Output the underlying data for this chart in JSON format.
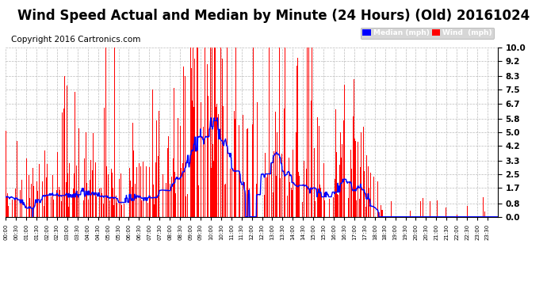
{
  "title": "Wind Speed Actual and Median by Minute (24 Hours) (Old) 20161024",
  "copyright": "Copyright 2016 Cartronics.com",
  "ylabel_right_values": [
    0.0,
    0.8,
    1.7,
    2.5,
    3.3,
    4.2,
    5.0,
    5.8,
    6.7,
    7.5,
    8.3,
    9.2,
    10.0
  ],
  "ylim": [
    0.0,
    10.0
  ],
  "bar_color": "#ff0000",
  "median_color": "#0000ff",
  "median_label": "Median (mph)",
  "wind_label": "Wind  (mph)",
  "legend_median_bg": "#0000ff",
  "legend_wind_bg": "#ff0000",
  "title_fontsize": 12,
  "copyright_fontsize": 7.5,
  "bg_color": "#ffffff",
  "grid_color": "#bbbbbb",
  "total_minutes": 1440,
  "random_seed": 7
}
